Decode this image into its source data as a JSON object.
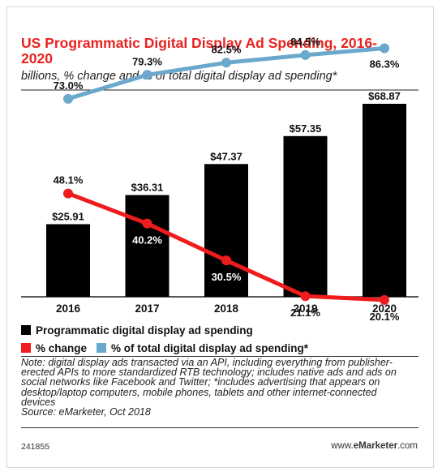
{
  "title": "US Programmatic Digital Display Ad Spending, 2016-2020",
  "subtitle": "billions, % change and % of total digital display ad spending*",
  "legend": {
    "items": [
      {
        "label": "Programmatic digital display ad spending",
        "color": "#000000"
      },
      {
        "label": "% change",
        "color": "#ee1c1c"
      },
      {
        "label": "% of total digital display ad spending*",
        "color": "#6aa8cc"
      }
    ]
  },
  "note": "Note: digital display ads transacted via an API, including everything from publisher-erected APIs to more standardized RTB technology; includes native ads and ads on social networks like Facebook and Twitter; *includes advertising that appears on desktop/laptop computers, mobile phones, tablets and other internet-connected devices",
  "source": "Source: eMarketer, Oct 2018",
  "footer": {
    "chart_id": "241855",
    "site_prefix": "www.",
    "site_brand": "eMarketer",
    "site_suffix": ".com"
  },
  "chart_data": {
    "type": "bar",
    "categories": [
      "2016",
      "2017",
      "2018",
      "2019",
      "2020"
    ],
    "series": [
      {
        "name": "Programmatic digital display ad spending",
        "type": "bar",
        "color": "#000000",
        "values": [
          25.91,
          36.31,
          47.37,
          57.35,
          68.87
        ],
        "labels": [
          "$25.91",
          "$36.31",
          "$47.37",
          "$57.35",
          "$68.87"
        ]
      },
      {
        "name": "% change",
        "type": "line",
        "color": "#ee1c1c",
        "values": [
          48.1,
          40.2,
          30.5,
          21.1,
          20.1
        ],
        "labels": [
          "48.1%",
          "40.2%",
          "30.5%",
          "21.1%",
          "20.1%"
        ]
      },
      {
        "name": "% of total digital display ad spending*",
        "type": "line",
        "color": "#6aa8cc",
        "values": [
          73.0,
          79.3,
          82.5,
          84.5,
          86.3
        ],
        "labels": [
          "73.0%",
          "79.3%",
          "82.5%",
          "84.5%",
          "86.3%"
        ]
      }
    ],
    "ylim": [
      0,
      70
    ],
    "grid": false,
    "legend_position": "bottom"
  }
}
